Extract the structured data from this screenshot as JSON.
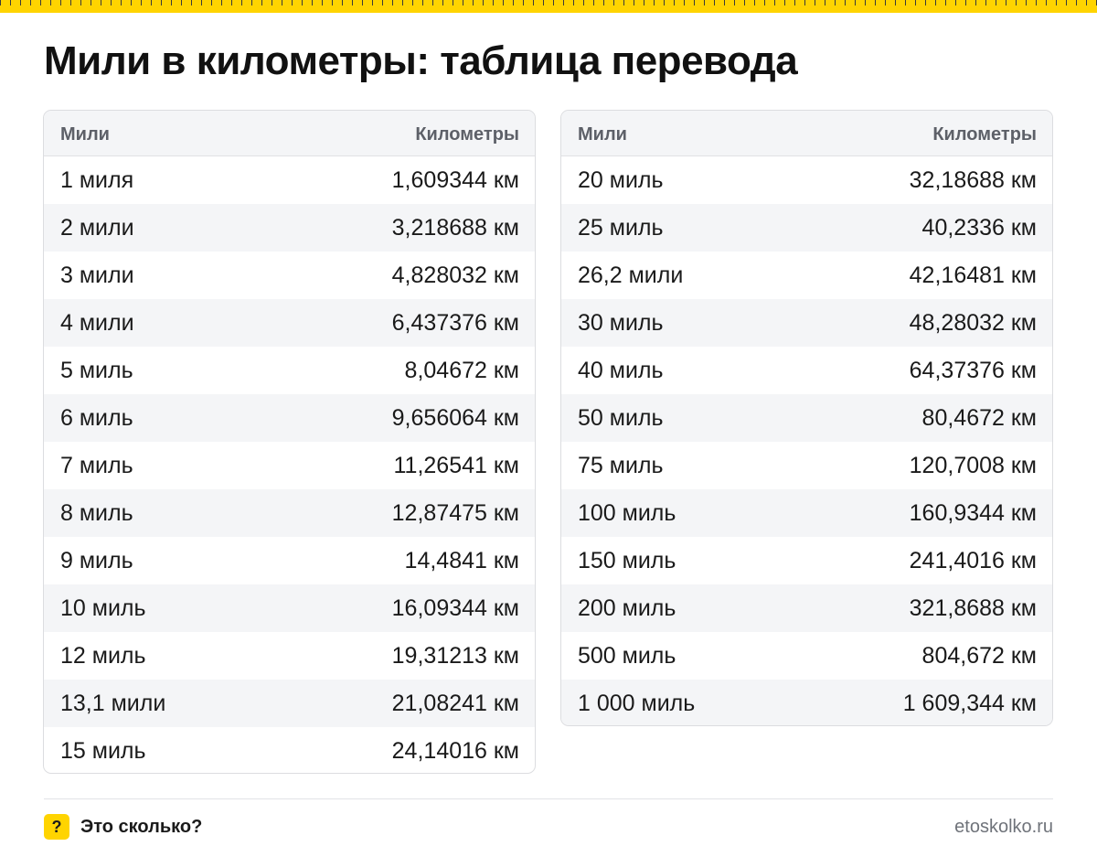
{
  "title": "Мили в километры: таблица перевода",
  "columns": {
    "miles": "Мили",
    "km": "Километры"
  },
  "left_rows": [
    {
      "miles": "1 миля",
      "km": "1,609344 км"
    },
    {
      "miles": "2 мили",
      "km": "3,218688 км"
    },
    {
      "miles": "3 мили",
      "km": "4,828032 км"
    },
    {
      "miles": "4 мили",
      "km": "6,437376 км"
    },
    {
      "miles": "5 миль",
      "km": "8,04672 км"
    },
    {
      "miles": "6 миль",
      "km": "9,656064 км"
    },
    {
      "miles": "7 миль",
      "km": "11,26541 км"
    },
    {
      "miles": "8 миль",
      "km": "12,87475 км"
    },
    {
      "miles": "9 миль",
      "km": "14,4841 км"
    },
    {
      "miles": "10 миль",
      "km": "16,09344 км"
    },
    {
      "miles": "12 миль",
      "km": "19,31213 км"
    },
    {
      "miles": "13,1 мили",
      "km": "21,08241 км"
    },
    {
      "miles": "15 миль",
      "km": "24,14016 км"
    }
  ],
  "right_rows": [
    {
      "miles": "20 миль",
      "km": "32,18688 км"
    },
    {
      "miles": "25 миль",
      "km": "40,2336 км"
    },
    {
      "miles": "26,2 мили",
      "km": "42,16481 км"
    },
    {
      "miles": "30 миль",
      "km": "48,28032 км"
    },
    {
      "miles": "40 миль",
      "km": "64,37376 км"
    },
    {
      "miles": "50 миль",
      "km": "80,4672 км"
    },
    {
      "miles": "75 миль",
      "km": "120,7008 км"
    },
    {
      "miles": "100 миль",
      "km": "160,9344 км"
    },
    {
      "miles": "150 миль",
      "km": "241,4016 км"
    },
    {
      "miles": "200 миль",
      "km": "321,8688 км"
    },
    {
      "miles": "500 миль",
      "km": "804,672 км"
    },
    {
      "miles": "1 000 миль",
      "km": "1 609,344 км"
    }
  ],
  "footer": {
    "logo_glyph": "?",
    "brand": "Это сколько?",
    "site": "etoskolko.ru"
  },
  "colors": {
    "accent": "#ffd400",
    "header_bg": "#f4f5f7",
    "stripe_bg": "#f4f5f7",
    "border": "#dcdde0"
  }
}
